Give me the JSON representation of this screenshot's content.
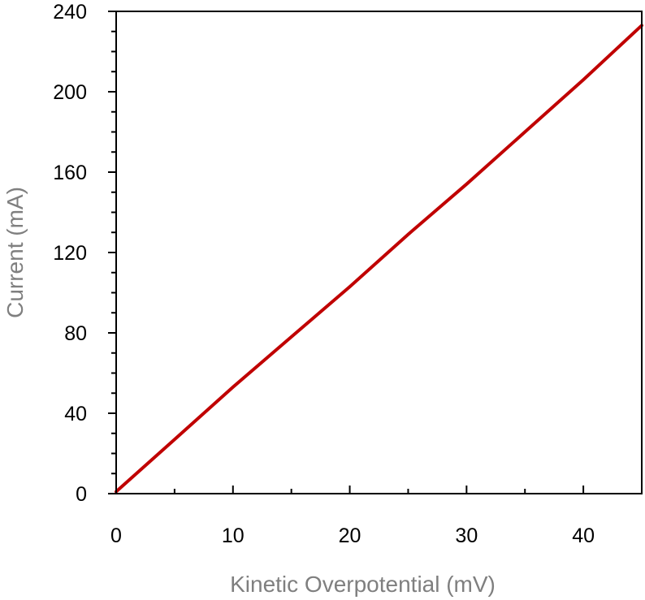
{
  "chart_data": {
    "type": "line",
    "title": "",
    "xlabel": "Kinetic Overpotential (mV)",
    "ylabel": "Current (mA)",
    "xlim": [
      0,
      45
    ],
    "ylim": [
      0,
      240
    ],
    "x_ticks": [
      0,
      10,
      20,
      30,
      40
    ],
    "y_ticks": [
      0,
      40,
      80,
      120,
      160,
      200,
      240
    ],
    "x_minor_step": 5,
    "y_minor_step": 10,
    "grid": false,
    "legend": "none",
    "line_color": "#c00000",
    "series": [
      {
        "x": [
          0,
          5,
          10,
          15,
          20,
          25,
          30,
          35,
          40,
          45
        ],
        "y": [
          1,
          27,
          53,
          78,
          103,
          129,
          154,
          180,
          206,
          233
        ]
      }
    ]
  }
}
